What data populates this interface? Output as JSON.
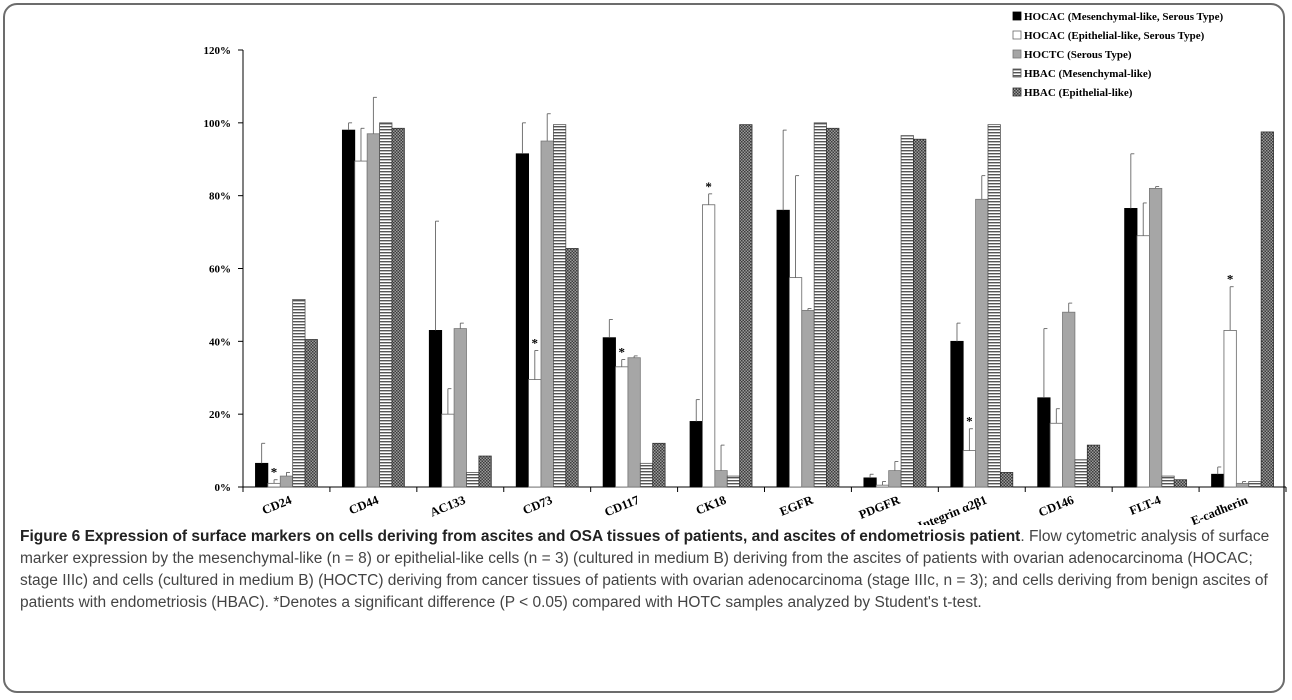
{
  "chart_data": {
    "type": "bar",
    "ylim": [
      0,
      1.2
    ],
    "yticks": [
      "0%",
      "20%",
      "40%",
      "60%",
      "80%",
      "100%",
      "120%"
    ],
    "categories": [
      "CD24",
      "CD44",
      "AC133",
      "CD73",
      "CD117",
      "CK18",
      "EGFR",
      "PDGFR",
      "Integrin α2β1",
      "CD146",
      "FLT-4",
      "E-cadherin"
    ],
    "series": [
      {
        "name": "HOCAC (Mesenchymal-like, Serous Type)",
        "values": [
          0.065,
          0.98,
          0.43,
          0.915,
          0.41,
          0.18,
          0.76,
          0.025,
          0.4,
          0.245,
          0.765,
          0.035
        ],
        "errors": [
          0.055,
          0.02,
          0.3,
          0.085,
          0.05,
          0.06,
          0.22,
          0.01,
          0.05,
          0.19,
          0.15,
          0.02
        ]
      },
      {
        "name": "HOCAC (Epithelial-like, Serous Type)",
        "values": [
          0.01,
          0.895,
          0.2,
          0.295,
          0.33,
          0.775,
          0.575,
          0.005,
          0.1,
          0.175,
          0.69,
          0.43
        ],
        "errors": [
          0.01,
          0.09,
          0.07,
          0.08,
          0.02,
          0.03,
          0.28,
          0.01,
          0.06,
          0.04,
          0.09,
          0.12
        ]
      },
      {
        "name": "HOCTC (Serous Type)",
        "values": [
          0.03,
          0.97,
          0.435,
          0.95,
          0.355,
          0.045,
          0.485,
          0.045,
          0.79,
          0.48,
          0.82,
          0.01
        ],
        "errors": [
          0.01,
          0.1,
          0.015,
          0.075,
          0.005,
          0.07,
          0.005,
          0.025,
          0.065,
          0.025,
          0.005,
          0.005
        ]
      },
      {
        "name": "HBAC (Mesenchymal-like)",
        "values": [
          0.515,
          1.0,
          0.04,
          0.995,
          0.065,
          0.03,
          1.0,
          0.965,
          0.995,
          0.075,
          0.03,
          0.015
        ],
        "errors": [
          0,
          0,
          0,
          0,
          0,
          0,
          0,
          0,
          0,
          0,
          0,
          0
        ]
      },
      {
        "name": "HBAC (Epithelial-like)",
        "values": [
          0.405,
          0.985,
          0.085,
          0.655,
          0.12,
          0.995,
          0.985,
          0.955,
          0.04,
          0.115,
          0.02,
          0.975
        ],
        "errors": [
          0,
          0,
          0,
          0,
          0,
          0,
          0,
          0,
          0,
          0,
          0,
          0
        ]
      }
    ],
    "significance": [
      {
        "category": "CD24",
        "series": 1,
        "label": "*"
      },
      {
        "category": "CD73",
        "series": 1,
        "label": "*"
      },
      {
        "category": "CD117",
        "series": 1,
        "label": "*"
      },
      {
        "category": "CK18",
        "series": 1,
        "label": "*"
      },
      {
        "category": "Integrin α2β1",
        "series": 1,
        "label": "*"
      },
      {
        "category": "E-cadherin",
        "series": 1,
        "label": "*"
      }
    ],
    "legend": "top-right",
    "grid": false
  },
  "caption": {
    "title": "Figure 6 Expression of surface markers on cells deriving from ascites and OSA tissues of patients, and ascites of endometriosis patient",
    "body": ". Flow cytometric analysis of surface marker expression by the mesenchymal-like (n = 8) or epithelial-like cells (n = 3) (cultured in medium B) deriving from the ascites of patients with ovarian adenocarcinoma (HOCAC; stage IIIc) and cells (cultured in medium B) (HOCTC) deriving from cancer tissues of patients with ovarian adenocarcinoma (stage IIIc, n = 3); and cells deriving from benign ascites of patients with endometriosis (HBAC). *Denotes a significant difference (P < 0.05) compared with HOTC samples analyzed by Student's t-test."
  }
}
